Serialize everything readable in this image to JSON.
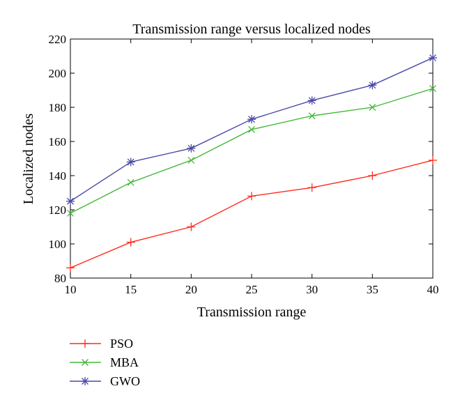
{
  "chart_data": {
    "type": "line",
    "title": "Transmission range versus localized nodes",
    "xlabel": "Transmission range",
    "ylabel": "Localized nodes",
    "x": [
      10,
      15,
      20,
      25,
      30,
      35,
      40
    ],
    "xlim": [
      10,
      40
    ],
    "ylim": [
      80,
      220
    ],
    "xticks": [
      "10",
      "15",
      "20",
      "25",
      "30",
      "35",
      "40"
    ],
    "yticks": [
      "80",
      "100",
      "120",
      "140",
      "160",
      "180",
      "200",
      "220"
    ],
    "grid": false,
    "legend_position": "below-left",
    "series": [
      {
        "name": "PSO",
        "color": "#ff2a1a",
        "marker": "plus",
        "values": [
          86,
          101,
          110,
          128,
          133,
          140,
          149
        ]
      },
      {
        "name": "MBA",
        "color": "#46b83a",
        "marker": "x",
        "values": [
          118,
          136,
          149,
          167,
          175,
          180,
          191
        ]
      },
      {
        "name": "GWO",
        "color": "#4a4aa8",
        "marker": "star",
        "values": [
          125,
          148,
          156,
          173,
          184,
          193,
          209
        ]
      }
    ]
  }
}
